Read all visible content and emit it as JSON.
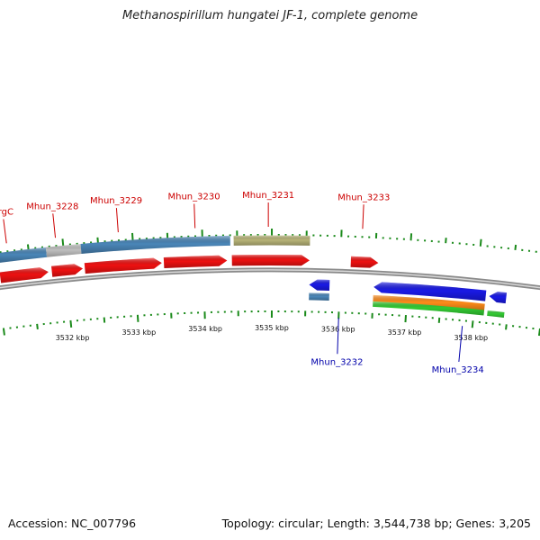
{
  "title": "Methanospirillum hungatei JF-1, complete genome",
  "footer": {
    "accession": "Accession: NC_007796",
    "stats": "Topology: circular; Length: 3,544,738 bp; Genes: 3,205"
  },
  "colors": {
    "forward_cds": "#ee1111",
    "reverse_cds": "#1a1ae6",
    "gene_bar": "#4a86b8",
    "gene_bar_grey": "#c0c0c0",
    "olive_bar": "#b8b478",
    "orange_bar": "#ff8c1a",
    "green_bar": "#33cc33",
    "tick_green": "#1a8a1a",
    "label_top": "#cc0000",
    "label_bottom": "#0000aa",
    "backbone": "#8a8a8a"
  },
  "top_labels": [
    {
      "name": "argC",
      "kbp": 3531.2
    },
    {
      "name": "Mhun_3228",
      "kbp": 3531.9
    },
    {
      "name": "Mhun_3229",
      "kbp": 3532.8
    },
    {
      "name": "Mhun_3230",
      "kbp": 3533.9
    },
    {
      "name": "Mhun_3231",
      "kbp": 3534.95
    },
    {
      "name": "Mhun_3233",
      "kbp": 3536.3
    }
  ],
  "bottom_labels": [
    {
      "name": "Mhun_3232",
      "kbp": 3536.0
    },
    {
      "name": "Mhun_3234",
      "kbp": 3537.85
    }
  ],
  "kbp_ticks": [
    {
      "label": "3532 kbp",
      "kbp": 3532
    },
    {
      "label": "3533 kbp",
      "kbp": 3533
    },
    {
      "label": "3534 kbp",
      "kbp": 3534
    },
    {
      "label": "3535 kbp",
      "kbp": 3535
    },
    {
      "label": "3536 kbp",
      "kbp": 3536
    },
    {
      "label": "3537 kbp",
      "kbp": 3537
    },
    {
      "label": "3538 kbp",
      "kbp": 3538
    }
  ],
  "forward_features": [
    {
      "start": 3531.05,
      "end": 3531.75,
      "color": "#4a86b8",
      "row": "bar"
    },
    {
      "start": 3531.75,
      "end": 3532.25,
      "color": "#c0c0c0",
      "row": "bar"
    },
    {
      "start": 3532.25,
      "end": 3534.4,
      "color": "#4a86b8",
      "row": "bar"
    },
    {
      "start": 3534.45,
      "end": 3535.55,
      "color": "#b8b478",
      "row": "bar"
    },
    {
      "start": 3531.05,
      "end": 3531.75,
      "color": "#ee1111",
      "row": "cds"
    },
    {
      "start": 3531.8,
      "end": 3532.25,
      "color": "#ee1111",
      "row": "cds"
    },
    {
      "start": 3532.28,
      "end": 3533.4,
      "color": "#ee1111",
      "row": "cds"
    },
    {
      "start": 3533.43,
      "end": 3534.35,
      "color": "#ee1111",
      "row": "cds"
    },
    {
      "start": 3534.42,
      "end": 3535.55,
      "color": "#ee1111",
      "row": "cds"
    },
    {
      "start": 3536.15,
      "end": 3536.55,
      "color": "#ee1111",
      "row": "cds"
    }
  ],
  "reverse_features": [
    {
      "start": 3535.55,
      "end": 3535.85,
      "color": "#1a1ae6",
      "row": "cds"
    },
    {
      "start": 3536.5,
      "end": 3538.15,
      "color": "#1a1ae6",
      "row": "cds"
    },
    {
      "start": 3538.2,
      "end": 3538.45,
      "color": "#1a1ae6",
      "row": "cds"
    },
    {
      "start": 3535.55,
      "end": 3535.85,
      "color": "#4a86b8",
      "row": "bar"
    },
    {
      "start": 3536.5,
      "end": 3538.15,
      "color": "#ff8c1a",
      "row": "bar"
    },
    {
      "start": 3536.5,
      "end": 3538.15,
      "color": "#33cc33",
      "row": "bar2"
    },
    {
      "start": 3538.2,
      "end": 3538.45,
      "color": "#33cc33",
      "row": "bar2"
    }
  ]
}
